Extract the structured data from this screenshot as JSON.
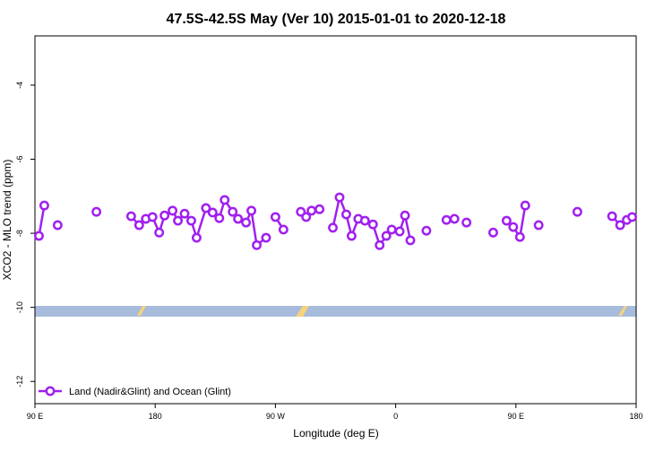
{
  "chart_data": {
    "type": "line",
    "title": "47.5S-42.5S May (Ver 10)   2015-01-01 to 2020-12-18",
    "x_label": "Longitude (deg E)",
    "y_label": "XCO2 - MLO trend (ppm)",
    "xlim": [
      90,
      540
    ],
    "ylim": [
      -12.6,
      -2.67
    ],
    "xticks": [
      {
        "value": 90,
        "label": "90 E"
      },
      {
        "value": 180,
        "label": "180"
      },
      {
        "value": 270,
        "label": "90 W"
      },
      {
        "value": 360,
        "label": "0"
      },
      {
        "value": 450,
        "label": "90 E"
      },
      {
        "value": 540,
        "label": "180"
      }
    ],
    "yticks": [
      -4,
      -6,
      -8,
      -10,
      -12
    ],
    "legend": "bottom-left",
    "series": [
      {
        "name": "Land (Nadir&Glint) and Ocean (Glint)",
        "color": "#a020f0",
        "x": [
          93,
          97,
          null,
          107,
          null,
          136,
          null,
          162,
          168,
          173,
          178,
          183,
          187,
          193,
          197,
          202,
          207,
          211,
          218,
          223,
          228,
          232,
          238,
          242,
          248,
          252,
          256,
          263,
          null,
          270,
          276,
          null,
          289,
          293,
          297,
          303,
          null,
          313,
          318,
          323,
          327,
          332,
          337,
          343,
          348,
          353,
          357,
          363,
          367,
          371,
          null,
          383,
          null,
          398,
          404,
          null,
          413,
          null,
          433,
          null,
          443,
          448,
          453,
          457,
          null,
          467,
          null,
          496,
          null,
          522,
          528,
          533,
          537
        ],
        "values": [
          -8.07,
          -7.25,
          null,
          -7.78,
          null,
          -7.42,
          null,
          -7.54,
          -7.78,
          -7.61,
          -7.56,
          -7.98,
          -7.52,
          -7.39,
          -7.66,
          -7.47,
          -7.66,
          -8.12,
          -7.32,
          -7.44,
          -7.59,
          -7.1,
          -7.42,
          -7.61,
          -7.71,
          -7.39,
          -8.32,
          -8.12,
          null,
          -7.56,
          -7.9,
          null,
          -7.42,
          -7.56,
          -7.39,
          -7.35,
          null,
          -7.85,
          -7.03,
          -7.49,
          -8.07,
          -7.61,
          -7.66,
          -7.76,
          -8.32,
          -8.07,
          -7.9,
          -7.95,
          -7.52,
          -8.19,
          null,
          -7.93,
          null,
          -7.64,
          -7.61,
          null,
          -7.71,
          null,
          -7.98,
          null,
          -7.66,
          -7.83,
          -8.1,
          -7.25,
          null,
          -7.78,
          null,
          -7.42,
          null,
          -7.54,
          -7.78,
          -7.64,
          -7.56
        ]
      }
    ]
  }
}
